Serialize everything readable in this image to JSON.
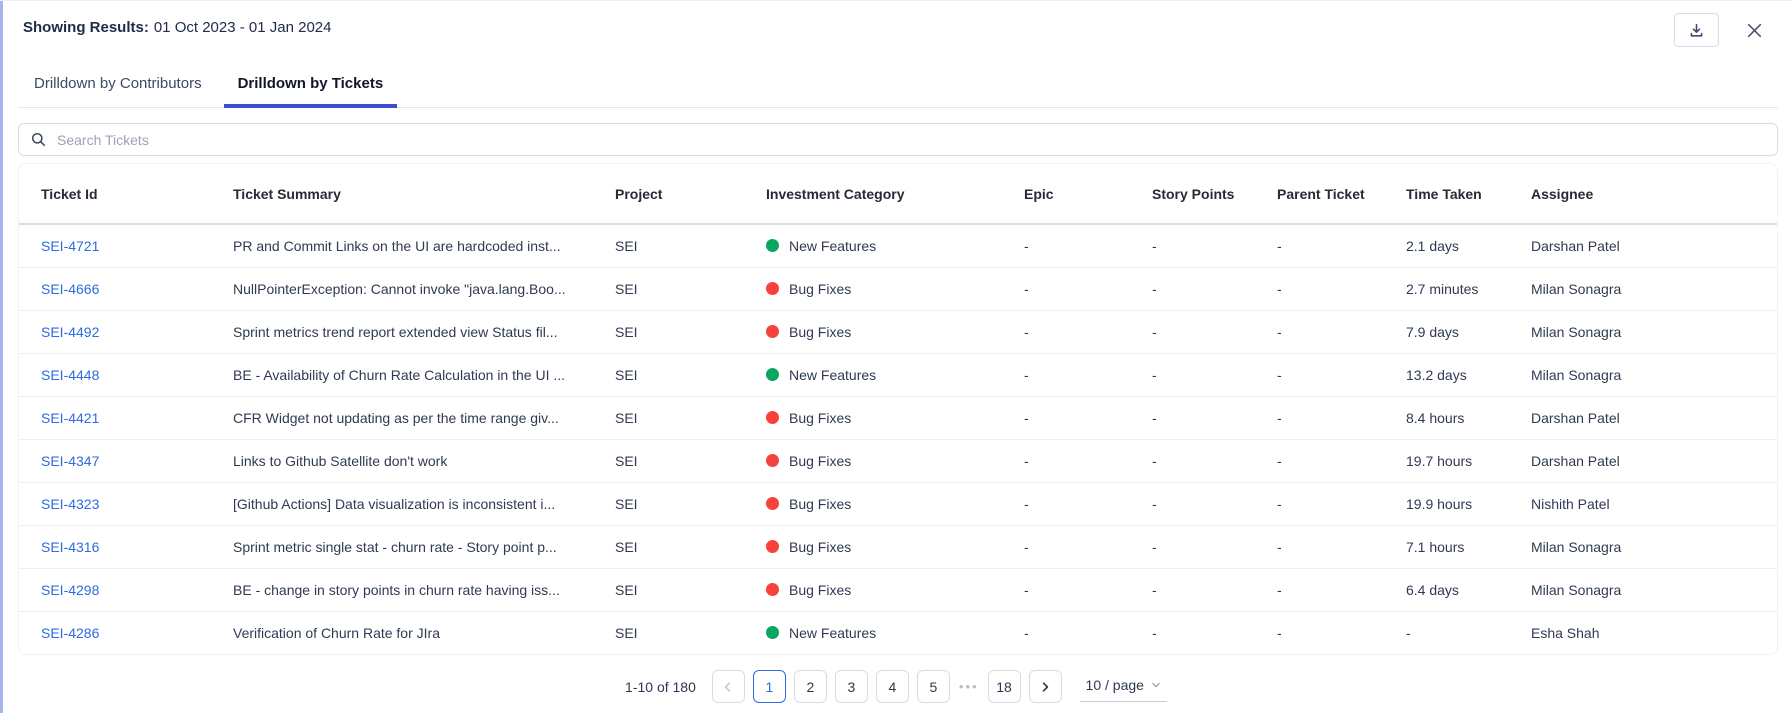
{
  "header": {
    "results_label": "Showing Results:",
    "results_value": "01 Oct 2023 - 01 Jan 2024"
  },
  "toolbar": {
    "download_icon": "download-icon",
    "close_icon": "close-icon"
  },
  "tabs": [
    {
      "id": "contributors",
      "label": "Drilldown by Contributors",
      "active": false
    },
    {
      "id": "tickets",
      "label": "Drilldown by Tickets",
      "active": true
    }
  ],
  "search": {
    "placeholder": "Search Tickets"
  },
  "table": {
    "columns": [
      "Ticket Id",
      "Ticket Summary",
      "Project",
      "Investment Category",
      "Epic",
      "Story Points",
      "Parent Ticket",
      "Time Taken",
      "Assignee"
    ],
    "rows": [
      {
        "ticket_id": "SEI-4721",
        "summary": "PR and Commit Links on the UI are hardcoded inst...",
        "project": "SEI",
        "category": "New Features",
        "epic": "-",
        "story_points": "-",
        "parent_ticket": "-",
        "time_taken": "2.1 days",
        "assignee": "Darshan Patel"
      },
      {
        "ticket_id": "SEI-4666",
        "summary": "NullPointerException: Cannot invoke \"java.lang.Boo...",
        "project": "SEI",
        "category": "Bug Fixes",
        "epic": "-",
        "story_points": "-",
        "parent_ticket": "-",
        "time_taken": "2.7 minutes",
        "assignee": "Milan Sonagra"
      },
      {
        "ticket_id": "SEI-4492",
        "summary": "Sprint metrics trend report extended view Status fil...",
        "project": "SEI",
        "category": "Bug Fixes",
        "epic": "-",
        "story_points": "-",
        "parent_ticket": "-",
        "time_taken": "7.9 days",
        "assignee": "Milan Sonagra"
      },
      {
        "ticket_id": "SEI-4448",
        "summary": "BE - Availability of Churn Rate Calculation in the UI ...",
        "project": "SEI",
        "category": "New Features",
        "epic": "-",
        "story_points": "-",
        "parent_ticket": "-",
        "time_taken": "13.2 days",
        "assignee": "Milan Sonagra"
      },
      {
        "ticket_id": "SEI-4421",
        "summary": "CFR Widget not updating as per the time range giv...",
        "project": "SEI",
        "category": "Bug Fixes",
        "epic": "-",
        "story_points": "-",
        "parent_ticket": "-",
        "time_taken": "8.4 hours",
        "assignee": "Darshan Patel"
      },
      {
        "ticket_id": "SEI-4347",
        "summary": "Links to Github Satellite don't work",
        "project": "SEI",
        "category": "Bug Fixes",
        "epic": "-",
        "story_points": "-",
        "parent_ticket": "-",
        "time_taken": "19.7 hours",
        "assignee": "Darshan Patel"
      },
      {
        "ticket_id": "SEI-4323",
        "summary": "[Github Actions] Data visualization is inconsistent i...",
        "project": "SEI",
        "category": "Bug Fixes",
        "epic": "-",
        "story_points": "-",
        "parent_ticket": "-",
        "time_taken": "19.9 hours",
        "assignee": "Nishith Patel"
      },
      {
        "ticket_id": "SEI-4316",
        "summary": "Sprint metric single stat - churn rate - Story point p...",
        "project": "SEI",
        "category": "Bug Fixes",
        "epic": "-",
        "story_points": "-",
        "parent_ticket": "-",
        "time_taken": "7.1 hours",
        "assignee": "Milan Sonagra"
      },
      {
        "ticket_id": "SEI-4298",
        "summary": "BE - change in story points in churn rate having iss...",
        "project": "SEI",
        "category": "Bug Fixes",
        "epic": "-",
        "story_points": "-",
        "parent_ticket": "-",
        "time_taken": "6.4 days",
        "assignee": "Milan Sonagra"
      },
      {
        "ticket_id": "SEI-4286",
        "summary": "Verification of Churn Rate for JIra",
        "project": "SEI",
        "category": "New Features",
        "epic": "-",
        "story_points": "-",
        "parent_ticket": "-",
        "time_taken": "-",
        "assignee": "Esha Shah"
      }
    ]
  },
  "category_colors": {
    "New Features": "#09a65f",
    "Bug Fixes": "#f6413c"
  },
  "pagination": {
    "range_text": "1-10 of 180",
    "page_numbers": [
      "1",
      "2",
      "3",
      "4",
      "5"
    ],
    "ellipsis": "•••",
    "last_page": "18",
    "active_page": "1",
    "page_size": "10 / page"
  },
  "colors": {
    "tab_underline": "#3a50d0",
    "link_blue": "#2d6bdf",
    "active_page_blue": "#2d6bdf",
    "green_dot": "#09a65f",
    "red_dot": "#f6413c",
    "left_edge_strip": "#a6b4ee"
  }
}
